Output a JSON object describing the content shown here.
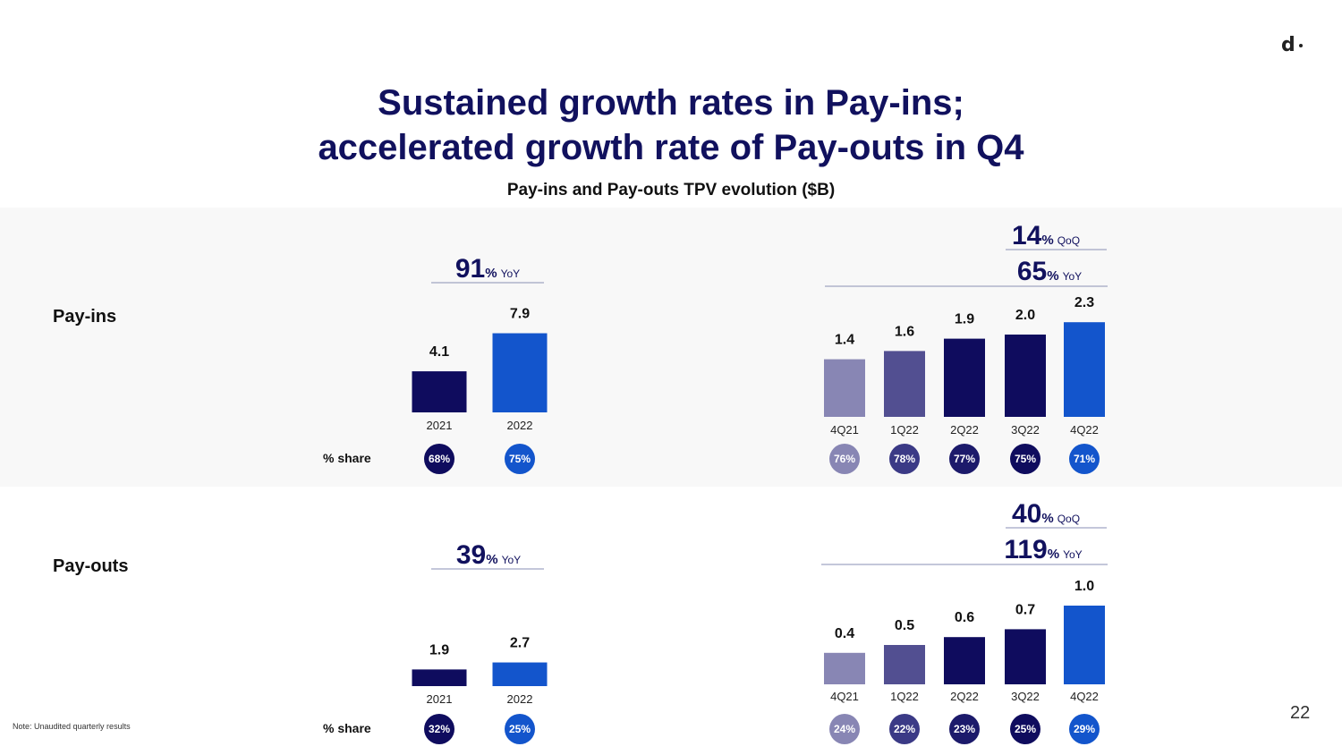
{
  "header": {
    "logo_text": "d",
    "title_line1": "Sustained growth rates in Pay-ins;",
    "title_line2": "accelerated growth rate of Pay-outs in Q4",
    "subtitle": "Pay-ins and Pay-outs TPV evolution ($B)"
  },
  "rows": {
    "payins_label": "Pay-ins",
    "payouts_label": "Pay-outs",
    "share_label": "% share"
  },
  "footer": {
    "note": "Note: Unaudited quarterly results",
    "page_number": "22"
  },
  "colors": {
    "navy": "#0f0c5e",
    "blue": "#1355cc",
    "q4_21": "#8886b4",
    "q1_22": "#524f91",
    "q2_22": "#0f0c5e",
    "q3_22": "#0f0c5e",
    "share_q1": "#3b3a86",
    "share_q2": "#1c1a6b"
  },
  "chart_data": [
    {
      "id": "payins-annual",
      "type": "bar",
      "categories": [
        "2021",
        "2022"
      ],
      "values": [
        4.1,
        7.9
      ],
      "value_labels": [
        "4.1",
        "7.9"
      ],
      "share": [
        "68%",
        "75%"
      ],
      "growth": [
        {
          "value": "91",
          "unit": "%",
          "label": "YoY"
        }
      ]
    },
    {
      "id": "payins-quarterly",
      "type": "bar",
      "categories": [
        "4Q21",
        "1Q22",
        "2Q22",
        "3Q22",
        "4Q22"
      ],
      "values": [
        1.4,
        1.6,
        1.9,
        2.0,
        2.3
      ],
      "value_labels": [
        "1.4",
        "1.6",
        "1.9",
        "2.0",
        "2.3"
      ],
      "share": [
        "76%",
        "78%",
        "77%",
        "75%",
        "71%"
      ],
      "growth": [
        {
          "value": "14",
          "unit": "%",
          "label": "QoQ"
        },
        {
          "value": "65",
          "unit": "%",
          "label": "YoY"
        }
      ]
    },
    {
      "id": "payouts-annual",
      "type": "bar",
      "categories": [
        "2021",
        "2022"
      ],
      "values": [
        1.9,
        2.7
      ],
      "value_labels": [
        "1.9",
        "2.7"
      ],
      "share": [
        "32%",
        "25%"
      ],
      "growth": [
        {
          "value": "39",
          "unit": "%",
          "label": "YoY"
        }
      ]
    },
    {
      "id": "payouts-quarterly",
      "type": "bar",
      "categories": [
        "4Q21",
        "1Q22",
        "2Q22",
        "3Q22",
        "4Q22"
      ],
      "values": [
        0.4,
        0.5,
        0.6,
        0.7,
        1.0
      ],
      "value_labels": [
        "0.4",
        "0.5",
        "0.6",
        "0.7",
        "1.0"
      ],
      "share": [
        "24%",
        "22%",
        "23%",
        "25%",
        "29%"
      ],
      "growth": [
        {
          "value": "40",
          "unit": "%",
          "label": "QoQ"
        },
        {
          "value": "119",
          "unit": "%",
          "label": "YoY"
        }
      ]
    }
  ]
}
